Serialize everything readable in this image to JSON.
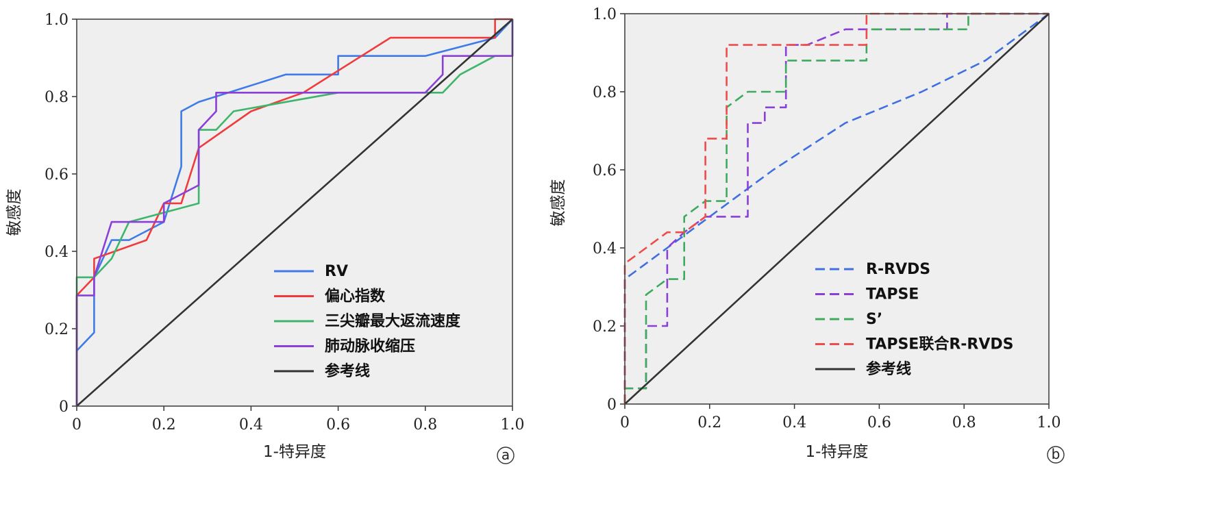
{
  "chart_data": [
    {
      "type": "line",
      "panel": "a",
      "xlabel": "1-特异度",
      "ylabel": "敏感度",
      "xlim": [
        0,
        1
      ],
      "ylim": [
        0,
        1
      ],
      "ticks": [
        "0",
        "0.2",
        "0.4",
        "0.6",
        "0.8",
        "1.0"
      ],
      "legend_position": "bottom-right",
      "series": [
        {
          "name": "RV",
          "color": "#3f7be8",
          "dash": "solid",
          "points": [
            [
              0,
              0
            ],
            [
              0,
              0.143
            ],
            [
              0.04,
              0.19
            ],
            [
              0.04,
              0.333
            ],
            [
              0.08,
              0.429
            ],
            [
              0.12,
              0.429
            ],
            [
              0.2,
              0.476
            ],
            [
              0.24,
              0.619
            ],
            [
              0.24,
              0.762
            ],
            [
              0.28,
              0.786
            ],
            [
              0.48,
              0.857
            ],
            [
              0.6,
              0.857
            ],
            [
              0.6,
              0.905
            ],
            [
              0.8,
              0.905
            ],
            [
              0.96,
              0.952
            ],
            [
              1,
              1
            ]
          ]
        },
        {
          "name": "偏心指数",
          "color": "#ef3b3b",
          "dash": "solid",
          "points": [
            [
              0,
              0
            ],
            [
              0,
              0.286
            ],
            [
              0.04,
              0.333
            ],
            [
              0.04,
              0.381
            ],
            [
              0.16,
              0.429
            ],
            [
              0.2,
              0.524
            ],
            [
              0.24,
              0.524
            ],
            [
              0.28,
              0.667
            ],
            [
              0.4,
              0.762
            ],
            [
              0.52,
              0.81
            ],
            [
              0.72,
              0.952
            ],
            [
              0.96,
              0.952
            ],
            [
              0.96,
              1
            ],
            [
              1,
              1
            ]
          ]
        },
        {
          "name": "三尖瓣最大返流速度",
          "color": "#3eb56a",
          "dash": "solid",
          "points": [
            [
              0,
              0
            ],
            [
              0,
              0.333
            ],
            [
              0.04,
              0.333
            ],
            [
              0.08,
              0.381
            ],
            [
              0.12,
              0.476
            ],
            [
              0.28,
              0.524
            ],
            [
              0.28,
              0.714
            ],
            [
              0.32,
              0.714
            ],
            [
              0.36,
              0.762
            ],
            [
              0.6,
              0.81
            ],
            [
              0.84,
              0.81
            ],
            [
              0.88,
              0.857
            ],
            [
              0.96,
              0.905
            ],
            [
              1,
              0.905
            ],
            [
              1,
              1
            ]
          ]
        },
        {
          "name": "肺动脉收缩压",
          "color": "#8a3fd8",
          "dash": "solid",
          "points": [
            [
              0,
              0
            ],
            [
              0,
              0.286
            ],
            [
              0.04,
              0.286
            ],
            [
              0.04,
              0.333
            ],
            [
              0.08,
              0.476
            ],
            [
              0.2,
              0.476
            ],
            [
              0.2,
              0.524
            ],
            [
              0.28,
              0.571
            ],
            [
              0.28,
              0.714
            ],
            [
              0.32,
              0.762
            ],
            [
              0.32,
              0.81
            ],
            [
              0.8,
              0.81
            ],
            [
              0.84,
              0.857
            ],
            [
              0.84,
              0.905
            ],
            [
              1,
              0.905
            ],
            [
              1,
              1
            ]
          ]
        },
        {
          "name": "参考线",
          "color": "#333333",
          "dash": "solid",
          "points": [
            [
              0,
              0
            ],
            [
              1,
              1
            ]
          ]
        }
      ]
    },
    {
      "type": "line",
      "panel": "b",
      "xlabel": "1-特异度",
      "ylabel": "敏感度",
      "xlim": [
        0,
        1
      ],
      "ylim": [
        0,
        1
      ],
      "ticks": [
        "0",
        "0.2",
        "0.4",
        "0.6",
        "0.8",
        "1.0"
      ],
      "legend_position": "bottom-right",
      "series": [
        {
          "name": "R-RVDS",
          "color": "#3f6fe0",
          "dash": "dashed",
          "points": [
            [
              0,
              0
            ],
            [
              0,
              0.32
            ],
            [
              0.1,
              0.4
            ],
            [
              0.2,
              0.48
            ],
            [
              0.35,
              0.6
            ],
            [
              0.52,
              0.72
            ],
            [
              0.7,
              0.8
            ],
            [
              0.85,
              0.88
            ],
            [
              1,
              1
            ]
          ]
        },
        {
          "name": "TAPSE",
          "color": "#8a3fd8",
          "dash": "dashed",
          "points": [
            [
              0,
              0
            ],
            [
              0,
              0.04
            ],
            [
              0.05,
              0.04
            ],
            [
              0.05,
              0.2
            ],
            [
              0.1,
              0.2
            ],
            [
              0.1,
              0.4
            ],
            [
              0.14,
              0.44
            ],
            [
              0.19,
              0.48
            ],
            [
              0.29,
              0.48
            ],
            [
              0.29,
              0.72
            ],
            [
              0.33,
              0.72
            ],
            [
              0.33,
              0.76
            ],
            [
              0.38,
              0.76
            ],
            [
              0.38,
              0.92
            ],
            [
              0.43,
              0.92
            ],
            [
              0.52,
              0.96
            ],
            [
              0.76,
              0.96
            ],
            [
              0.76,
              1
            ],
            [
              1,
              1
            ]
          ]
        },
        {
          "name": "S’",
          "color": "#3eaa5e",
          "dash": "dashed",
          "points": [
            [
              0,
              0
            ],
            [
              0,
              0.04
            ],
            [
              0.05,
              0.04
            ],
            [
              0.05,
              0.28
            ],
            [
              0.1,
              0.32
            ],
            [
              0.14,
              0.32
            ],
            [
              0.14,
              0.48
            ],
            [
              0.19,
              0.52
            ],
            [
              0.24,
              0.52
            ],
            [
              0.24,
              0.76
            ],
            [
              0.29,
              0.8
            ],
            [
              0.38,
              0.8
            ],
            [
              0.38,
              0.88
            ],
            [
              0.57,
              0.88
            ],
            [
              0.57,
              0.96
            ],
            [
              0.81,
              0.96
            ],
            [
              0.81,
              1
            ],
            [
              1,
              1
            ]
          ]
        },
        {
          "name": "TAPSE联合R-RVDS",
          "color": "#ef4b4b",
          "dash": "dashed",
          "points": [
            [
              0,
              0
            ],
            [
              0,
              0.36
            ],
            [
              0.05,
              0.4
            ],
            [
              0.1,
              0.44
            ],
            [
              0.14,
              0.44
            ],
            [
              0.19,
              0.48
            ],
            [
              0.19,
              0.68
            ],
            [
              0.24,
              0.68
            ],
            [
              0.24,
              0.92
            ],
            [
              0.57,
              0.92
            ],
            [
              0.57,
              1
            ],
            [
              1,
              1
            ]
          ]
        },
        {
          "name": "参考线",
          "color": "#333333",
          "dash": "solid",
          "points": [
            [
              0,
              0
            ],
            [
              1,
              1
            ]
          ]
        }
      ]
    }
  ],
  "panel_labels": [
    "a",
    "b"
  ]
}
